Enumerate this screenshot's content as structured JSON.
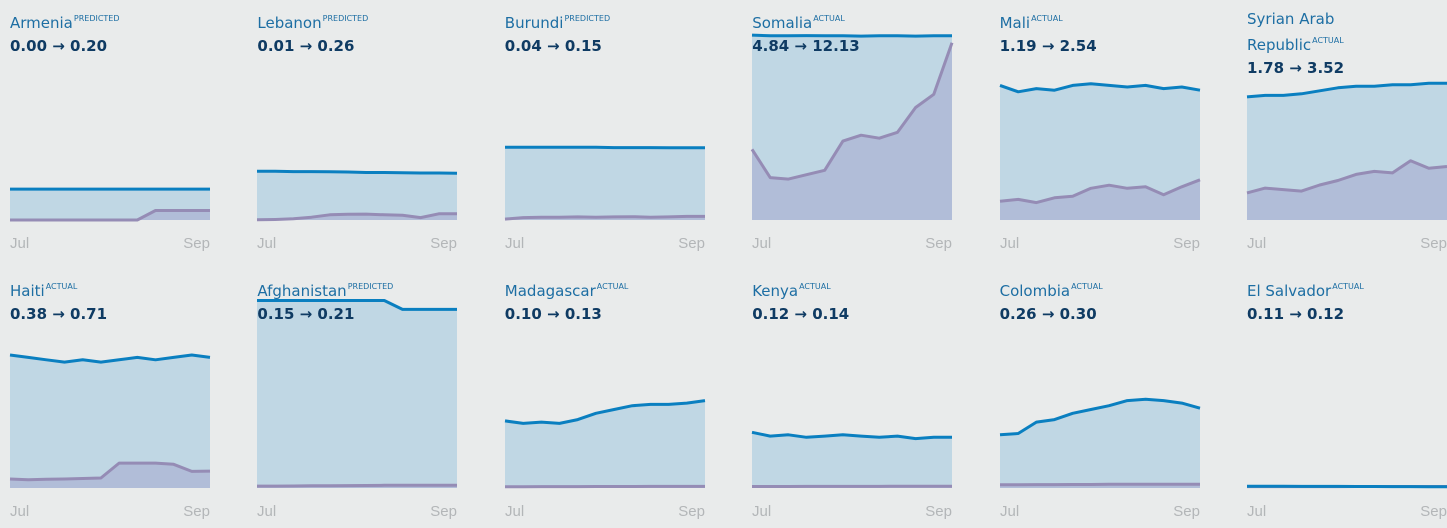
{
  "chart_data": [
    {
      "type": "area",
      "title": "Armenia",
      "label": "PREDICTED",
      "subtitle": "0.00 → 0.20",
      "categories": [
        "Jul",
        null,
        null,
        null,
        null,
        null,
        null,
        null,
        null,
        null,
        null,
        "Sep"
      ],
      "ylim": [
        0,
        4
      ],
      "series": [
        {
          "color": "#0a7fc0",
          "values": [
            0.65,
            0.65,
            0.65,
            0.65,
            0.65,
            0.65,
            0.65,
            0.65,
            0.65,
            0.65,
            0.65,
            0.65
          ]
        },
        {
          "color": "#958cb5",
          "values": [
            0,
            0,
            0,
            0,
            0,
            0,
            0,
            0,
            0.2,
            0.2,
            0.2,
            0.2
          ]
        }
      ]
    },
    {
      "type": "area",
      "title": "Lebanon",
      "label": "PREDICTED",
      "subtitle": "0.01 → 0.26",
      "categories": [
        "Jul",
        null,
        null,
        null,
        null,
        null,
        null,
        null,
        null,
        null,
        null,
        "Sep"
      ],
      "ylim": [
        0,
        8
      ],
      "series": [
        {
          "color": "#0a7fc0",
          "values": [
            2.05,
            2.05,
            2.04,
            2.04,
            2.03,
            2.02,
            2.0,
            2.0,
            1.99,
            1.98,
            1.98,
            1.97
          ]
        },
        {
          "color": "#958cb5",
          "values": [
            0.01,
            0.02,
            0.05,
            0.12,
            0.22,
            0.24,
            0.25,
            0.22,
            0.2,
            0.1,
            0.26,
            0.26
          ]
        }
      ]
    },
    {
      "type": "area",
      "title": "Burundi",
      "label": "PREDICTED",
      "subtitle": "0.04 → 0.15",
      "categories": [
        "Jul",
        null,
        null,
        null,
        null,
        null,
        null,
        null,
        null,
        null,
        null,
        "Sep"
      ],
      "ylim": [
        0,
        8
      ],
      "series": [
        {
          "color": "#0a7fc0",
          "values": [
            3.06,
            3.06,
            3.06,
            3.06,
            3.06,
            3.06,
            3.05,
            3.05,
            3.05,
            3.04,
            3.04,
            3.04
          ]
        },
        {
          "color": "#958cb5",
          "values": [
            0.04,
            0.1,
            0.12,
            0.12,
            0.13,
            0.12,
            0.13,
            0.14,
            0.12,
            0.13,
            0.15,
            0.15
          ]
        }
      ]
    },
    {
      "type": "area",
      "title": "Somalia",
      "label": "ACTUAL",
      "subtitle": "4.84 → 12.13",
      "categories": [
        "Jul",
        null,
        null,
        null,
        null,
        null,
        null,
        null,
        null,
        null,
        null,
        "Sep"
      ],
      "ylim": [
        0,
        13
      ],
      "series": [
        {
          "color": "#0a7fc0",
          "values": [
            12.65,
            12.6,
            12.6,
            12.62,
            12.6,
            12.6,
            12.58,
            12.6,
            12.6,
            12.58,
            12.6,
            12.6
          ]
        },
        {
          "color": "#958cb5",
          "values": [
            4.84,
            2.9,
            2.8,
            3.1,
            3.4,
            5.4,
            5.8,
            5.6,
            6.0,
            7.7,
            8.6,
            12.13
          ]
        }
      ]
    },
    {
      "type": "area",
      "title": "Mali",
      "label": "ACTUAL",
      "subtitle": "1.19 → 2.54",
      "categories": [
        "Jul",
        null,
        null,
        null,
        null,
        null,
        null,
        null,
        null,
        null,
        null,
        "Sep"
      ],
      "ylim": [
        0,
        12
      ],
      "series": [
        {
          "color": "#0a7fc0",
          "values": [
            8.5,
            8.1,
            8.3,
            8.2,
            8.5,
            8.6,
            8.5,
            8.4,
            8.5,
            8.3,
            8.4,
            8.2
          ]
        },
        {
          "color": "#958cb5",
          "values": [
            1.19,
            1.3,
            1.1,
            1.4,
            1.5,
            2.0,
            2.2,
            2.0,
            2.1,
            1.6,
            2.1,
            2.54
          ]
        }
      ]
    },
    {
      "type": "area",
      "title": "Syrian Arab Republic",
      "label": "ACTUAL",
      "subtitle": "1.78 → 3.52",
      "categories": [
        "Jul",
        null,
        null,
        null,
        null,
        null,
        null,
        null,
        null,
        null,
        null,
        "Sep"
      ],
      "ylim": [
        0,
        12.5
      ],
      "series": [
        {
          "color": "#0a7fc0",
          "values": [
            8.1,
            8.2,
            8.2,
            8.3,
            8.5,
            8.7,
            8.8,
            8.8,
            8.9,
            8.9,
            9.0,
            9.0
          ]
        },
        {
          "color": "#958cb5",
          "values": [
            1.78,
            2.1,
            2.0,
            1.9,
            2.3,
            2.6,
            3.0,
            3.2,
            3.1,
            3.9,
            3.4,
            3.52
          ]
        }
      ]
    },
    {
      "type": "area",
      "title": "Haiti",
      "label": "ACTUAL",
      "subtitle": "0.38 → 0.71",
      "categories": [
        "Jul",
        null,
        null,
        null,
        null,
        null,
        null,
        null,
        null,
        null,
        null,
        "Sep"
      ],
      "ylim": [
        0,
        8
      ],
      "series": [
        {
          "color": "#0a7fc0",
          "values": [
            5.6,
            5.5,
            5.4,
            5.3,
            5.4,
            5.3,
            5.4,
            5.5,
            5.4,
            5.5,
            5.6,
            5.5
          ]
        },
        {
          "color": "#958cb5",
          "values": [
            0.38,
            0.35,
            0.37,
            0.38,
            0.4,
            0.42,
            1.05,
            1.05,
            1.05,
            1.0,
            0.7,
            0.71
          ]
        }
      ]
    },
    {
      "type": "area",
      "title": "Afghanistan",
      "label": "PREDICTED",
      "subtitle": "0.15 → 0.21",
      "categories": [
        "Jul",
        null,
        null,
        null,
        null,
        null,
        null,
        null,
        null,
        null,
        null,
        "Sep"
      ],
      "ylim": [
        0,
        15
      ],
      "series": [
        {
          "color": "#0a7fc0",
          "values": [
            14.8,
            14.8,
            14.8,
            14.8,
            14.8,
            14.8,
            14.8,
            14.8,
            14.1,
            14.1,
            14.1,
            14.1
          ]
        },
        {
          "color": "#958cb5",
          "values": [
            0.15,
            0.15,
            0.16,
            0.17,
            0.18,
            0.19,
            0.2,
            0.21,
            0.21,
            0.21,
            0.21,
            0.21
          ]
        }
      ]
    },
    {
      "type": "area",
      "title": "Madagascar",
      "label": "ACTUAL",
      "subtitle": "0.10 → 0.13",
      "categories": [
        "Jul",
        null,
        null,
        null,
        null,
        null,
        null,
        null,
        null,
        null,
        null,
        "Sep"
      ],
      "ylim": [
        0,
        15
      ],
      "series": [
        {
          "color": "#0a7fc0",
          "values": [
            5.3,
            5.1,
            5.2,
            5.1,
            5.4,
            5.9,
            6.2,
            6.5,
            6.6,
            6.6,
            6.7,
            6.9
          ]
        },
        {
          "color": "#958cb5",
          "values": [
            0.1,
            0.1,
            0.11,
            0.11,
            0.11,
            0.12,
            0.12,
            0.12,
            0.13,
            0.13,
            0.13,
            0.13
          ]
        }
      ]
    },
    {
      "type": "area",
      "title": "Kenya",
      "label": "ACTUAL",
      "subtitle": "0.12 → 0.14",
      "categories": [
        "Jul",
        null,
        null,
        null,
        null,
        null,
        null,
        null,
        null,
        null,
        null,
        "Sep"
      ],
      "ylim": [
        0,
        15
      ],
      "series": [
        {
          "color": "#0a7fc0",
          "values": [
            4.4,
            4.1,
            4.2,
            4.0,
            4.1,
            4.2,
            4.1,
            4.0,
            4.1,
            3.9,
            4.0,
            4.0
          ]
        },
        {
          "color": "#958cb5",
          "values": [
            0.12,
            0.12,
            0.12,
            0.13,
            0.13,
            0.13,
            0.13,
            0.13,
            0.14,
            0.14,
            0.14,
            0.14
          ]
        }
      ]
    },
    {
      "type": "area",
      "title": "Colombia",
      "label": "ACTUAL",
      "subtitle": "0.26 → 0.30",
      "categories": [
        "Jul",
        null,
        null,
        null,
        null,
        null,
        null,
        null,
        null,
        null,
        null,
        "Sep"
      ],
      "ylim": [
        0,
        15
      ],
      "series": [
        {
          "color": "#0a7fc0",
          "values": [
            4.2,
            4.3,
            5.2,
            5.4,
            5.9,
            6.2,
            6.5,
            6.9,
            7.0,
            6.9,
            6.7,
            6.3
          ]
        },
        {
          "color": "#958cb5",
          "values": [
            0.26,
            0.26,
            0.27,
            0.27,
            0.28,
            0.28,
            0.29,
            0.29,
            0.3,
            0.3,
            0.3,
            0.3
          ]
        }
      ]
    },
    {
      "type": "area",
      "title": "El Salvador",
      "label": "ACTUAL",
      "subtitle": "0.11 → 0.12",
      "categories": [
        "Jul",
        null,
        null,
        null,
        null,
        null,
        null,
        null,
        null,
        null,
        null,
        "Sep"
      ],
      "ylim": [
        0,
        15
      ],
      "series": [
        {
          "color": "#0a7fc0",
          "values": [
            0.14,
            0.14,
            0.14,
            0.13,
            0.13,
            0.13,
            0.12,
            0.12,
            0.11,
            0.11,
            0.1,
            0.1
          ]
        },
        {
          "color": "#958cb5",
          "values": [
            0.11,
            0.11,
            0.11,
            0.11,
            0.11,
            0.11,
            0.12,
            0.12,
            0.12,
            0.12,
            0.12,
            0.12
          ]
        }
      ]
    }
  ]
}
